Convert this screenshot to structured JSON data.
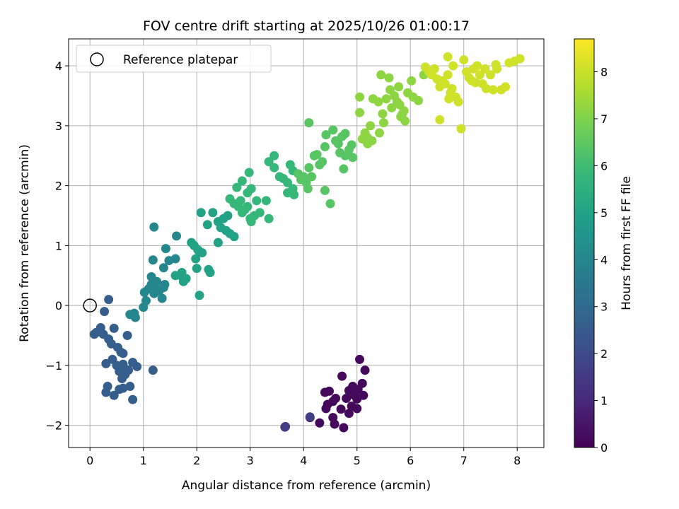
{
  "chart_data": {
    "type": "scatter",
    "title": "FOV centre drift starting at 2025/10/26 01:00:17",
    "xlabel": "Angular distance from reference (arcmin)",
    "ylabel": "Rotation from reference (arcmin)",
    "xlim": [
      -0.4,
      8.5
    ],
    "ylim": [
      -2.37,
      4.45
    ],
    "xticks": [
      "0",
      "1",
      "2",
      "3",
      "4",
      "5",
      "6",
      "7",
      "8"
    ],
    "yticks": [
      "−2",
      "−1",
      "0",
      "1",
      "2",
      "3",
      "4"
    ],
    "grid": true,
    "legend": {
      "position": "upper-left",
      "entries": [
        "Reference platepar"
      ]
    },
    "colorbar": {
      "label": "Hours from first FF file",
      "range": [
        0,
        8.7
      ],
      "ticks": [
        "0",
        "1",
        "2",
        "3",
        "4",
        "5",
        "6",
        "7",
        "8"
      ],
      "colormap": "viridis"
    },
    "reference_point": {
      "x": 0,
      "y": 0
    },
    "colors": {
      "viridis": [
        "#440154",
        "#482878",
        "#3e4989",
        "#31688e",
        "#26828e",
        "#1f9e89",
        "#35b779",
        "#6ece58",
        "#b5de2b",
        "#fde725"
      ],
      "grid": "#b0b0b0",
      "axes": "#000000"
    },
    "series": [
      {
        "values": [
          [
            5.05,
            -0.9
          ],
          [
            5.15,
            -1.08
          ],
          [
            4.72,
            -1.18
          ],
          [
            5.1,
            -1.3
          ],
          [
            4.92,
            -1.35
          ],
          [
            5.02,
            -1.4
          ],
          [
            4.85,
            -1.42
          ],
          [
            4.95,
            -1.5
          ],
          [
            5.12,
            -1.5
          ],
          [
            4.4,
            -1.45
          ],
          [
            4.48,
            -1.43
          ],
          [
            4.6,
            -1.55
          ],
          [
            4.8,
            -1.55
          ],
          [
            5.0,
            -1.56
          ],
          [
            4.55,
            -1.6
          ],
          [
            4.45,
            -1.65
          ],
          [
            4.9,
            -1.68
          ],
          [
            4.7,
            -1.73
          ],
          [
            4.42,
            -1.72
          ],
          [
            5.0,
            -1.72
          ],
          [
            4.85,
            -1.8
          ],
          [
            4.55,
            -1.87
          ],
          [
            4.12,
            -1.87
          ],
          [
            4.3,
            -1.96
          ],
          [
            4.58,
            -1.98
          ],
          [
            4.75,
            -2.04
          ]
        ],
        "hours": 0.2
      },
      {
        "values": [
          [
            3.66,
            -2.02
          ],
          [
            3.65,
            -2.03
          ],
          [
            4.12,
            -1.86
          ]
        ],
        "hours": 1.6
      },
      {
        "values": [
          [
            0.35,
            0.1
          ],
          [
            0.27,
            -0.1
          ],
          [
            0.12,
            -0.45
          ],
          [
            0.08,
            -0.48
          ],
          [
            0.25,
            -0.48
          ],
          [
            0.2,
            -0.37
          ],
          [
            0.35,
            -0.56
          ],
          [
            0.45,
            -0.38
          ],
          [
            0.4,
            -0.64
          ],
          [
            0.7,
            -0.5
          ],
          [
            0.52,
            -0.7
          ],
          [
            0.3,
            -0.97
          ],
          [
            0.42,
            -0.9
          ],
          [
            0.5,
            -1.0
          ],
          [
            0.58,
            -0.78
          ],
          [
            0.62,
            -0.8
          ],
          [
            0.62,
            -0.98
          ],
          [
            0.8,
            -0.95
          ],
          [
            0.88,
            -1.02
          ],
          [
            0.65,
            -1.1
          ],
          [
            0.55,
            -1.1
          ],
          [
            0.72,
            -1.08
          ],
          [
            0.66,
            -1.15
          ],
          [
            0.6,
            -1.22
          ],
          [
            0.33,
            -1.35
          ],
          [
            0.3,
            -1.45
          ],
          [
            0.45,
            -1.5
          ],
          [
            0.62,
            -1.38
          ],
          [
            0.75,
            -1.35
          ],
          [
            0.8,
            -1.57
          ],
          [
            1.18,
            -1.08
          ],
          [
            0.55,
            -1.4
          ]
        ],
        "hours": 2.6
      },
      {
        "values": [
          [
            0.75,
            -0.15
          ],
          [
            0.83,
            -0.13
          ],
          [
            0.85,
            -0.2
          ],
          [
            1.0,
            -0.03
          ],
          [
            1.02,
            0.22
          ],
          [
            1.05,
            0.08
          ],
          [
            1.1,
            0.28
          ],
          [
            1.15,
            0.35
          ],
          [
            1.15,
            0.48
          ],
          [
            1.2,
            0.2
          ],
          [
            1.22,
            0.3
          ],
          [
            1.25,
            0.4
          ],
          [
            1.3,
            0.25
          ],
          [
            1.35,
            0.12
          ],
          [
            1.38,
            0.3
          ],
          [
            1.4,
            0.35
          ],
          [
            1.18,
            0.76
          ],
          [
            1.2,
            1.31
          ],
          [
            1.42,
            0.95
          ],
          [
            1.48,
            0.75
          ],
          [
            1.6,
            0.78
          ],
          [
            1.62,
            1.16
          ],
          [
            1.38,
            0.63
          ]
        ],
        "hours": 4.0
      },
      {
        "values": [
          [
            1.6,
            0.5
          ],
          [
            1.7,
            0.5
          ],
          [
            1.72,
            0.55
          ],
          [
            1.75,
            0.4
          ],
          [
            1.8,
            0.45
          ],
          [
            1.9,
            1.05
          ],
          [
            1.95,
            1.0
          ],
          [
            1.98,
            0.78
          ],
          [
            2.0,
            0.62
          ],
          [
            2.02,
            0.93
          ],
          [
            2.05,
            0.9
          ],
          [
            2.1,
            0.88
          ],
          [
            2.22,
            0.6
          ],
          [
            2.25,
            0.55
          ],
          [
            2.05,
            0.17
          ],
          [
            2.08,
            1.55
          ],
          [
            2.2,
            1.35
          ],
          [
            2.3,
            1.55
          ],
          [
            2.4,
            1.4
          ],
          [
            2.45,
            1.3
          ],
          [
            2.5,
            1.45
          ],
          [
            2.55,
            1.25
          ],
          [
            2.58,
            1.5
          ],
          [
            2.62,
            1.2
          ],
          [
            2.7,
            1.15
          ],
          [
            2.4,
            1.05
          ]
        ],
        "hours": 5.0
      },
      {
        "values": [
          [
            2.62,
            1.78
          ],
          [
            2.7,
            1.7
          ],
          [
            2.78,
            1.65
          ],
          [
            2.82,
            1.75
          ],
          [
            2.85,
            1.55
          ],
          [
            2.9,
            1.6
          ],
          [
            2.95,
            1.65
          ],
          [
            3.0,
            1.45
          ],
          [
            3.02,
            1.4
          ],
          [
            3.08,
            1.5
          ],
          [
            3.12,
            1.75
          ],
          [
            3.18,
            1.55
          ],
          [
            2.75,
            1.97
          ],
          [
            2.85,
            2.08
          ],
          [
            2.95,
            1.88
          ],
          [
            2.98,
            2.22
          ],
          [
            3.02,
            1.95
          ],
          [
            3.3,
            1.75
          ],
          [
            3.35,
            1.45
          ],
          [
            3.35,
            2.4
          ],
          [
            3.45,
            2.5
          ],
          [
            3.45,
            2.3
          ],
          [
            3.55,
            2.15
          ],
          [
            3.62,
            2.12
          ],
          [
            3.7,
            1.88
          ],
          [
            3.7,
            2.05
          ],
          [
            3.75,
            2.35
          ],
          [
            3.8,
            1.95
          ],
          [
            3.82,
            1.85
          ],
          [
            3.8,
            2.25
          ]
        ],
        "hours": 5.8
      },
      {
        "values": [
          [
            3.9,
            2.2
          ],
          [
            3.95,
            2.1
          ],
          [
            4.0,
            2.15
          ],
          [
            4.05,
            2.05
          ],
          [
            4.08,
            1.95
          ],
          [
            4.1,
            2.3
          ],
          [
            4.15,
            2.15
          ],
          [
            4.2,
            2.5
          ],
          [
            4.25,
            2.52
          ],
          [
            4.3,
            2.35
          ],
          [
            4.35,
            2.4
          ],
          [
            4.4,
            2.65
          ],
          [
            4.42,
            2.85
          ],
          [
            4.4,
            1.92
          ],
          [
            4.5,
            1.7
          ],
          [
            4.55,
            2.93
          ],
          [
            4.6,
            2.75
          ],
          [
            4.65,
            2.7
          ],
          [
            4.68,
            2.55
          ],
          [
            4.72,
            2.82
          ],
          [
            4.75,
            2.28
          ],
          [
            4.78,
            2.5
          ],
          [
            4.78,
            2.87
          ],
          [
            4.85,
            2.6
          ],
          [
            4.9,
            2.68
          ],
          [
            4.92,
            2.47
          ],
          [
            4.1,
            3.05
          ]
        ],
        "hours": 6.4
      },
      {
        "values": [
          [
            5.05,
            3.22
          ],
          [
            5.1,
            2.78
          ],
          [
            5.15,
            2.88
          ],
          [
            5.2,
            2.8
          ],
          [
            5.25,
            3.0
          ],
          [
            5.2,
            2.7
          ],
          [
            5.28,
            2.75
          ],
          [
            5.3,
            3.45
          ],
          [
            5.05,
            3.48
          ],
          [
            5.4,
            3.4
          ],
          [
            5.42,
            2.88
          ],
          [
            5.45,
            3.85
          ],
          [
            5.48,
            3.2
          ],
          [
            5.5,
            3.05
          ],
          [
            5.55,
            3.45
          ],
          [
            5.6,
            3.8
          ],
          [
            5.62,
            3.6
          ],
          [
            5.65,
            3.3
          ],
          [
            5.7,
            3.5
          ],
          [
            5.75,
            3.4
          ],
          [
            5.78,
            3.65
          ],
          [
            5.8,
            3.35
          ],
          [
            5.82,
            3.15
          ],
          [
            5.85,
            3.2
          ],
          [
            5.88,
            3.25
          ],
          [
            5.9,
            3.08
          ],
          [
            5.95,
            3.55
          ],
          [
            6.05,
            3.48
          ],
          [
            6.15,
            3.42
          ],
          [
            6.02,
            3.75
          ],
          [
            6.25,
            3.85
          ]
        ],
        "hours": 7.2
      },
      {
        "values": [
          [
            6.28,
            3.98
          ],
          [
            6.35,
            3.9
          ],
          [
            6.4,
            3.85
          ],
          [
            6.45,
            3.95
          ],
          [
            6.5,
            3.78
          ],
          [
            6.55,
            3.65
          ],
          [
            6.55,
            3.1
          ],
          [
            6.6,
            3.75
          ],
          [
            6.65,
            3.7
          ],
          [
            6.7,
            3.85
          ],
          [
            6.72,
            3.45
          ],
          [
            6.75,
            3.55
          ],
          [
            6.78,
            3.62
          ],
          [
            6.8,
            4.0
          ],
          [
            6.85,
            3.48
          ],
          [
            6.9,
            3.4
          ],
          [
            6.95,
            2.95
          ],
          [
            6.7,
            4.15
          ],
          [
            7.0,
            4.1
          ],
          [
            7.05,
            3.9
          ],
          [
            7.1,
            3.8
          ],
          [
            7.15,
            3.75
          ],
          [
            7.18,
            3.95
          ],
          [
            7.22,
            3.72
          ],
          [
            7.25,
            4.0
          ],
          [
            7.3,
            3.85
          ],
          [
            7.35,
            3.7
          ],
          [
            7.4,
            3.95
          ],
          [
            7.42,
            3.62
          ],
          [
            7.5,
            3.85
          ],
          [
            7.55,
            3.6
          ],
          [
            7.62,
            3.95
          ],
          [
            7.7,
            3.6
          ],
          [
            7.78,
            3.65
          ],
          [
            7.6,
            4.02
          ],
          [
            7.85,
            4.05
          ],
          [
            7.95,
            4.08
          ],
          [
            8.05,
            4.12
          ]
        ],
        "hours": 8.1
      }
    ]
  }
}
